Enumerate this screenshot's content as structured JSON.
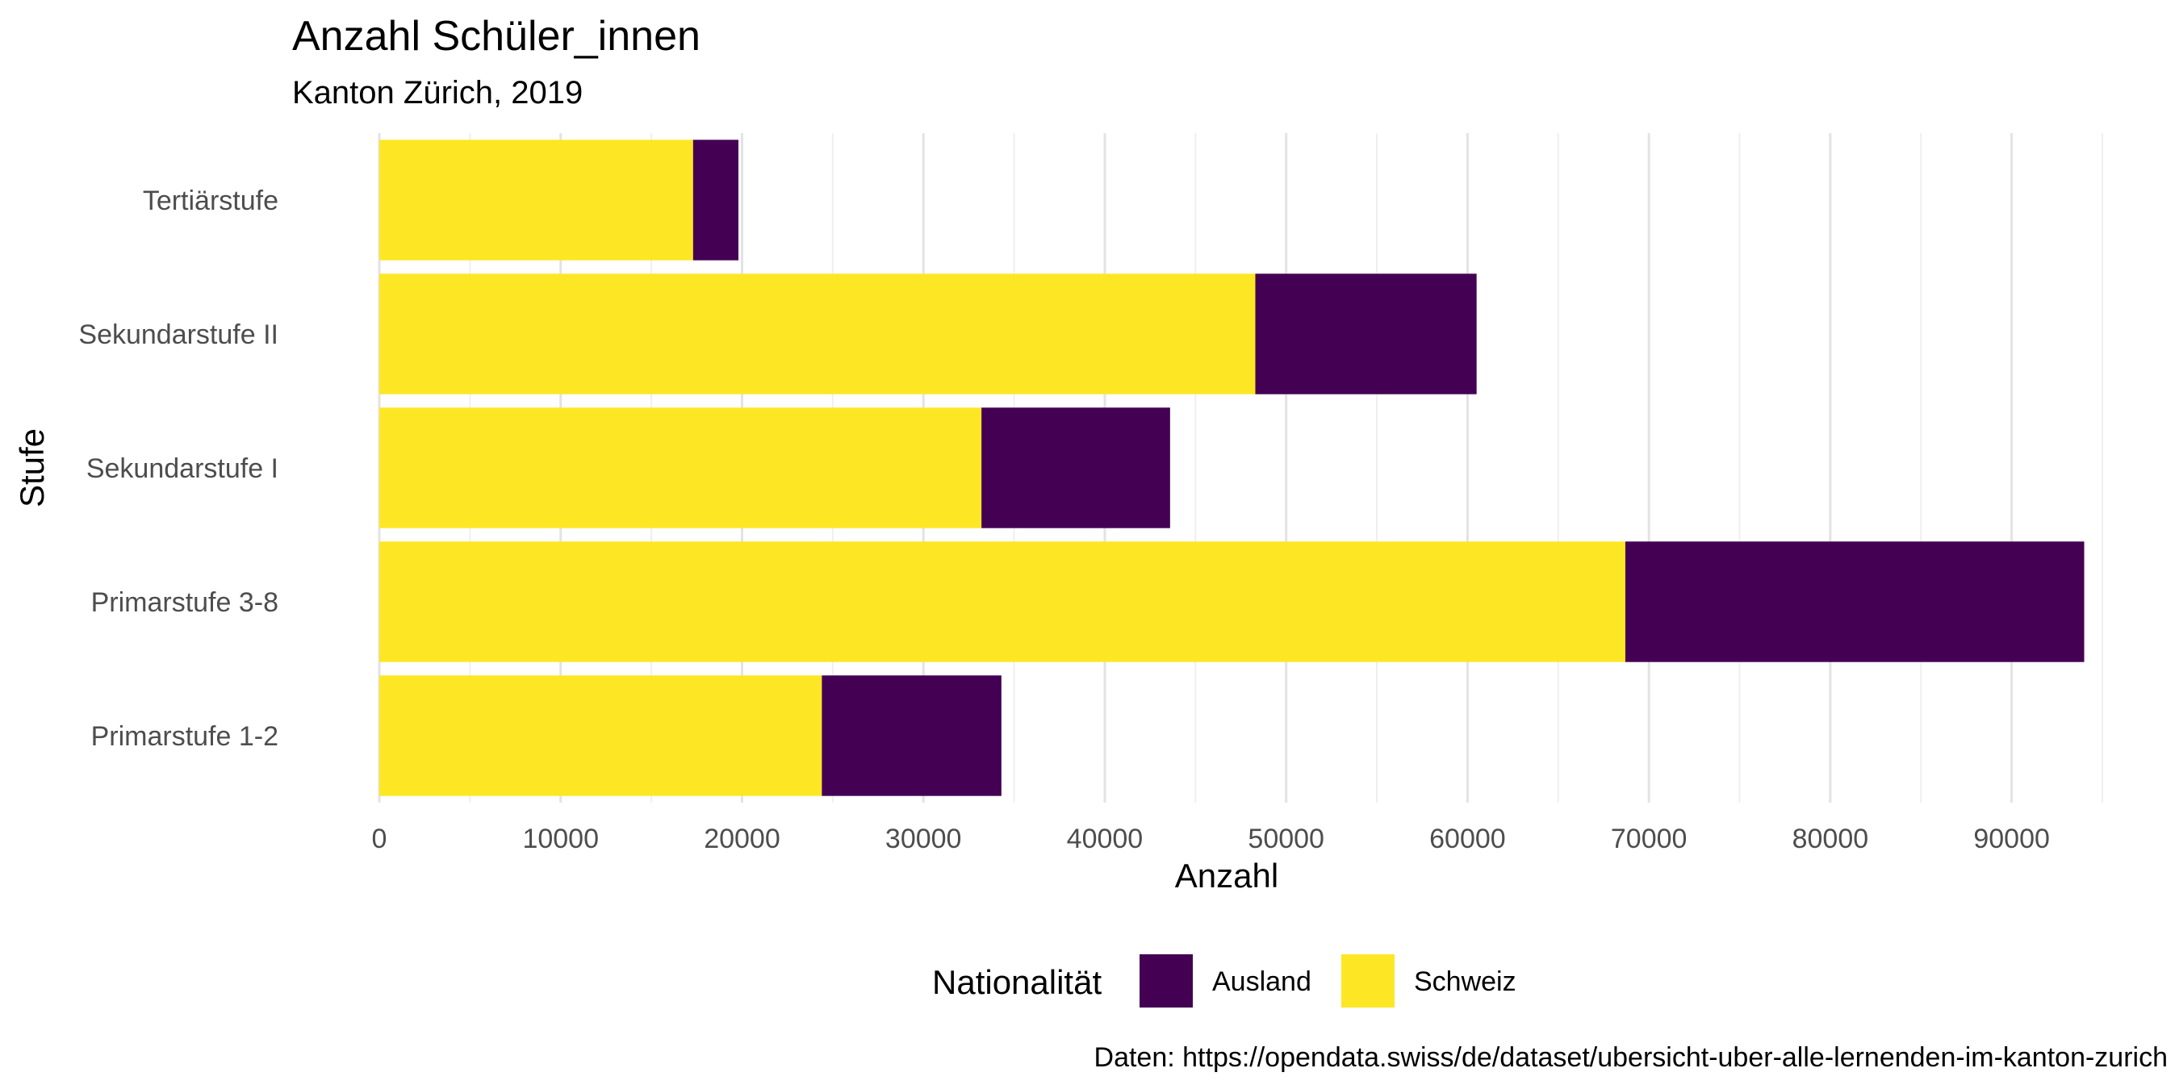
{
  "chart_data": {
    "type": "bar",
    "orientation": "horizontal",
    "stacked": true,
    "title": "Anzahl Schüler_innen",
    "subtitle": "Kanton Zürich, 2019",
    "xlabel": "Anzahl",
    "ylabel": "Stufe",
    "caption": "Daten: https://opendata.swiss/de/dataset/ubersicht-uber-alle-lernenden-im-kanton-zurich",
    "categories": [
      "Tertiärstufe",
      "Sekundarstufe II",
      "Sekundarstufe I",
      "Primarstufe 3-8",
      "Primarstufe 1-2"
    ],
    "series": [
      {
        "name": "Schweiz",
        "color": "#FDE725",
        "values": [
          17300,
          48300,
          33200,
          68700,
          24400
        ]
      },
      {
        "name": "Ausland",
        "color": "#440154",
        "values": [
          2500,
          12200,
          10400,
          25300,
          9900
        ]
      }
    ],
    "xlim": [
      0,
      95000
    ],
    "xticks": [
      0,
      10000,
      20000,
      30000,
      40000,
      50000,
      60000,
      70000,
      80000,
      90000
    ],
    "xtick_labels": [
      "0",
      "10000",
      "20000",
      "30000",
      "40000",
      "50000",
      "60000",
      "70000",
      "80000",
      "90000"
    ],
    "grid": true,
    "legend": {
      "title": "Nationalität",
      "position": "bottom",
      "items": [
        {
          "label": "Ausland",
          "color": "#440154"
        },
        {
          "label": "Schweiz",
          "color": "#FDE725"
        }
      ]
    }
  }
}
